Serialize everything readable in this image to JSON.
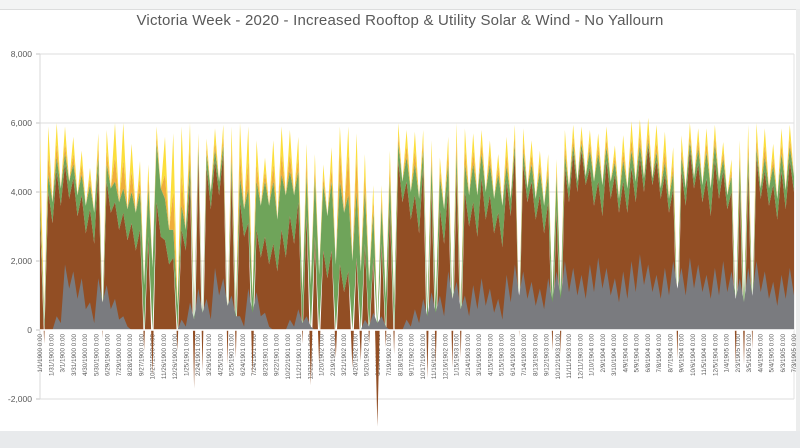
{
  "title": "Victoria Week - 2020 - Increased Rooftop & Utility Solar & Wind - No Yallourn",
  "chart_data": {
    "type": "area",
    "stacked": true,
    "title": "Victoria Week - 2020 - Increased Rooftop & Utility Solar & Wind - No Yallourn",
    "xlabel": "",
    "ylabel": "",
    "grid": true,
    "legend": "none",
    "ylim": [
      -2900,
      8300
    ],
    "y_ticks": [
      "8,000",
      "6,000",
      "4,000",
      "2,000",
      "0",
      "-2,000"
    ],
    "y_tick_values": [
      8000,
      6000,
      4000,
      2000,
      0,
      -2000
    ],
    "x_tick_labels": [
      "1/1/1900 0:00",
      "1/31/1900 0:00",
      "3/1/1900 0:00",
      "3/31/1900 0:00",
      "4/30/1900 0:00",
      "5/30/1900 0:00",
      "6/29/1900 0:00",
      "7/29/1900 0:00",
      "8/28/1900 0:00",
      "9/27/1900 0:00",
      "10/27/1900 0:00",
      "11/26/1900 0:00",
      "12/26/1900 0:00",
      "1/25/1901 0:00",
      "2/24/1901 0:00",
      "3/26/1901 0:00",
      "4/25/1901 0:00",
      "5/25/1901 0:00",
      "6/24/1901 0:00",
      "7/24/1901 0:00",
      "8/23/1901 0:00",
      "9/22/1901 0:00",
      "10/22/1901 0:00",
      "11/21/1901 0:00",
      "12/21/1901 0:00",
      "1/20/1902 0:00",
      "2/19/1902 0:00",
      "3/21/1902 0:00",
      "4/20/1902 0:00",
      "5/20/1902 0:00",
      "6/19/1902 0:00",
      "7/19/1902 0:00",
      "8/18/1902 0:00",
      "9/17/1902 0:00",
      "10/17/1902 0:00",
      "11/16/1902 0:00",
      "12/16/1902 0:00",
      "1/15/1903 0:00",
      "2/14/1903 0:00",
      "3/16/1903 0:00",
      "4/15/1903 0:00",
      "5/15/1903 0:00",
      "6/14/1903 0:00",
      "7/14/1903 0:00",
      "8/13/1903 0:00",
      "9/12/1903 0:00",
      "10/12/1903 0:00",
      "11/11/1903 0:00",
      "12/11/1903 0:00",
      "1/10/1904 0:00",
      "2/9/1904 0:00",
      "3/10/1904 0:00",
      "4/9/1904 0:00",
      "5/9/1904 0:00",
      "6/8/1904 0:00",
      "7/8/1904 0:00",
      "8/7/1904 0:00",
      "9/6/1904 0:00",
      "10/6/1904 0:00",
      "11/5/1904 0:00",
      "12/5/1904 0:00",
      "1/4/1905 0:00",
      "2/3/1905 0:00",
      "3/5/1905 0:00",
      "4/4/1905 0:00",
      "5/4/1905 0:00",
      "6/3/1905 0:00",
      "7/3/1905 0:00"
    ],
    "series": [
      {
        "id": "brown",
        "name": "series-brown",
        "color": "#924e24",
        "values": [
          3200,
          -400,
          4000,
          3100,
          4600,
          3600,
          4800,
          3800,
          4400,
          3300,
          3900,
          2800,
          3500,
          2500,
          4600,
          -250,
          4300,
          3400,
          3700,
          2900,
          3400,
          2600,
          3100,
          2300,
          2900,
          -600,
          2700,
          -1300,
          3700,
          2700,
          2600,
          1900,
          2100,
          -600,
          2900,
          2300,
          4300,
          -1700,
          5000,
          -1200,
          4700,
          3500,
          4900,
          3900,
          5100,
          -1000,
          4500,
          -800,
          3700,
          2700,
          3100,
          -1300,
          2900,
          2100,
          2700,
          1900,
          2500,
          1700,
          2900,
          2100,
          3300,
          2500,
          3700,
          -400,
          3300,
          -1600,
          2700,
          -1000,
          2300,
          1500,
          2300,
          -800,
          1900,
          1100,
          1700,
          -1100,
          2100,
          -900,
          2500,
          -400,
          2100,
          -2800,
          2500,
          -500,
          3500,
          -700,
          4900,
          3700,
          4300,
          3200,
          3900,
          2800,
          4700,
          -1400,
          4100,
          -1000,
          3500,
          2500,
          4100,
          -1100,
          4600,
          -800,
          4000,
          3000,
          3700,
          2700,
          4400,
          3200,
          3900,
          2800,
          3400,
          2400,
          4300,
          3300,
          5100,
          -200,
          4800,
          3700,
          4300,
          3200,
          3900,
          2800,
          3700,
          -600,
          3500,
          -700,
          4700,
          3700,
          5100,
          4000,
          5200,
          4200,
          4700,
          3600,
          4300,
          3300,
          4900,
          3800,
          4500,
          3400,
          4300,
          3400,
          4700,
          3700,
          5000,
          4000,
          5300,
          4200,
          4900,
          3800,
          4500,
          3400,
          4100,
          -850,
          4600,
          3600,
          5200,
          4100,
          4800,
          3700,
          4400,
          3300,
          4900,
          3800,
          4600,
          3500,
          4000,
          -1000,
          4200,
          -1000,
          4600,
          -550,
          5000,
          3800,
          4600,
          3600,
          4200,
          3200,
          4600,
          3500,
          4900,
          4000
        ]
      },
      {
        "id": "green",
        "name": "series-green",
        "color": "#6fa45a",
        "values": [
          400,
          300,
          500,
          600,
          400,
          500,
          300,
          500,
          400,
          600,
          600,
          800,
          700,
          900,
          400,
          400,
          500,
          700,
          600,
          800,
          700,
          900,
          900,
          1100,
          1100,
          1300,
          1400,
          1800,
          1700,
          1400,
          1200,
          1000,
          800,
          700,
          700,
          600,
          500,
          400,
          250,
          300,
          400,
          500,
          300,
          400,
          250,
          300,
          400,
          500,
          700,
          800,
          1000,
          900,
          1400,
          1500,
          1600,
          1700,
          1800,
          1500,
          1600,
          1800,
          1300,
          1400,
          900,
          1000,
          1200,
          1300,
          1700,
          1600,
          1900,
          1800,
          2000,
          1900,
          2400,
          2300,
          2200,
          2000,
          1900,
          1700,
          1500,
          1400,
          1300,
          200,
          1100,
          900,
          900,
          700,
          500,
          600,
          700,
          800,
          900,
          1000,
          500,
          600,
          700,
          800,
          900,
          1000,
          700,
          600,
          500,
          500,
          800,
          900,
          1100,
          1200,
          700,
          800,
          900,
          1000,
          1100,
          1200,
          450,
          500,
          250,
          300,
          350,
          400,
          500,
          600,
          700,
          800,
          800,
          900,
          950,
          1000,
          350,
          400,
          250,
          300,
          200,
          250,
          500,
          700,
          800,
          900,
          400,
          500,
          350,
          400,
          600,
          700,
          500,
          600,
          350,
          400,
          150,
          200,
          250,
          300,
          350,
          400,
          450,
          500,
          400,
          500,
          250,
          300,
          450,
          500,
          750,
          800,
          450,
          500,
          350,
          400,
          450,
          500,
          650,
          700,
          500,
          600,
          250,
          300,
          400,
          500,
          550,
          600,
          500,
          550,
          400,
          450
        ]
      },
      {
        "id": "amber",
        "name": "series-amber",
        "color": "#efae3d",
        "values": [
          700,
          0,
          600,
          0,
          400,
          0,
          300,
          0,
          300,
          0,
          300,
          0,
          200,
          0,
          300,
          0,
          400,
          0,
          700,
          0,
          800,
          0,
          600,
          0,
          400,
          0,
          300,
          0,
          200,
          0,
          700,
          0,
          1100,
          0,
          900,
          0,
          500,
          0,
          200,
          0,
          200,
          0,
          250,
          0,
          250,
          0,
          400,
          0,
          700,
          0,
          800,
          0,
          500,
          0,
          300,
          0,
          500,
          0,
          600,
          0,
          500,
          0,
          400,
          0,
          400,
          0,
          300,
          0,
          250,
          0,
          400,
          0,
          900,
          0,
          1200,
          0,
          1000,
          0,
          500,
          0,
          350,
          0,
          250,
          0,
          350,
          0,
          250,
          0,
          350,
          0,
          400,
          0,
          250,
          0,
          300,
          0,
          250,
          0,
          350,
          0,
          400,
          0,
          450,
          0,
          400,
          0,
          300,
          0,
          300,
          0,
          250,
          0,
          350,
          0,
          250,
          0,
          300,
          0,
          300,
          0,
          250,
          0,
          250,
          0,
          200,
          0,
          300,
          0,
          250,
          0,
          200,
          0,
          250,
          0,
          250,
          0,
          250,
          0,
          200,
          0,
          300,
          0,
          350,
          0,
          300,
          0,
          250,
          0,
          300,
          0,
          350,
          0,
          300,
          0,
          250,
          0,
          200,
          0,
          250,
          0,
          300,
          0,
          250,
          0,
          200,
          0,
          200,
          0,
          250,
          0,
          350,
          0,
          300,
          0,
          350,
          0,
          250,
          0,
          300,
          0,
          250,
          0
        ]
      },
      {
        "id": "yellow",
        "name": "series-yellow",
        "color": "#fcdf3c",
        "values": [
          1300,
          0,
          800,
          0,
          600,
          0,
          500,
          0,
          500,
          0,
          400,
          0,
          300,
          0,
          400,
          0,
          600,
          0,
          1000,
          0,
          1100,
          0,
          800,
          0,
          500,
          0,
          400,
          0,
          300,
          0,
          1100,
          0,
          1700,
          0,
          1400,
          0,
          700,
          0,
          250,
          0,
          250,
          0,
          400,
          0,
          350,
          0,
          600,
          0,
          900,
          0,
          1000,
          0,
          700,
          0,
          400,
          0,
          700,
          0,
          800,
          0,
          700,
          0,
          600,
          0,
          500,
          0,
          400,
          0,
          350,
          0,
          600,
          0,
          700,
          0,
          800,
          0,
          700,
          0,
          600,
          0,
          450,
          0,
          350,
          0,
          450,
          0,
          350,
          0,
          450,
          0,
          550,
          0,
          350,
          0,
          400,
          0,
          350,
          0,
          450,
          0,
          500,
          0,
          600,
          0,
          500,
          0,
          400,
          0,
          400,
          0,
          350,
          0,
          500,
          0,
          350,
          0,
          400,
          0,
          400,
          0,
          350,
          0,
          350,
          0,
          300,
          0,
          450,
          0,
          350,
          0,
          300,
          0,
          350,
          0,
          350,
          0,
          350,
          0,
          300,
          0,
          450,
          0,
          500,
          0,
          450,
          0,
          450,
          0,
          500,
          0,
          550,
          0,
          450,
          0,
          400,
          0,
          350,
          0,
          350,
          0,
          400,
          0,
          350,
          0,
          300,
          0,
          300,
          0,
          400,
          0,
          500,
          0,
          450,
          0,
          500,
          0,
          400,
          0,
          450,
          0,
          400,
          0
        ]
      },
      {
        "id": "gray",
        "name": "series-gray-overlay",
        "color": "#7a7b7f",
        "overlay": true,
        "values": [
          0,
          0,
          0,
          0,
          400,
          200,
          1900,
          1200,
          1700,
          900,
          1500,
          600,
          800,
          200,
          1500,
          800,
          1300,
          600,
          900,
          300,
          400,
          100,
          0,
          0,
          0,
          0,
          0,
          0,
          0,
          0,
          0,
          0,
          0,
          0,
          300,
          100,
          800,
          300,
          1200,
          500,
          900,
          300,
          1800,
          1000,
          1500,
          700,
          1000,
          400,
          400,
          100,
          1200,
          500,
          1100,
          400,
          500,
          100,
          0,
          0,
          0,
          0,
          300,
          100,
          600,
          200,
          400,
          100,
          0,
          0,
          0,
          0,
          0,
          0,
          0,
          0,
          0,
          0,
          0,
          0,
          300,
          100,
          500,
          200,
          400,
          100,
          0,
          0,
          0,
          0,
          300,
          100,
          600,
          200,
          900,
          400,
          1100,
          500,
          1000,
          400,
          1700,
          900,
          1400,
          600,
          1000,
          400,
          1300,
          600,
          1500,
          700,
          1200,
          500,
          900,
          300,
          1600,
          800,
          1900,
          1000,
          1700,
          900,
          1400,
          700,
          1200,
          600,
          1500,
          800,
          1700,
          900,
          2000,
          1100,
          1800,
          1000,
          1600,
          900,
          1900,
          1100,
          2100,
          1200,
          1800,
          1000,
          1500,
          800,
          1700,
          900,
          2000,
          1100,
          2200,
          1300,
          1900,
          1100,
          1600,
          900,
          1800,
          1000,
          2000,
          1200,
          1800,
          1000,
          2100,
          1200,
          1900,
          1100,
          1600,
          900,
          1800,
          1000,
          2000,
          1100,
          1700,
          900,
          1500,
          800,
          1800,
          1000,
          2000,
          1100,
          1700,
          900,
          1400,
          700,
          1600,
          900,
          1800,
          1000
        ]
      }
    ],
    "style": {
      "gridline_color": "#dcdcdc",
      "axis_label_color": "#595959",
      "zero_line_color": "#ffffff",
      "plot_background": "#ffffff"
    }
  }
}
